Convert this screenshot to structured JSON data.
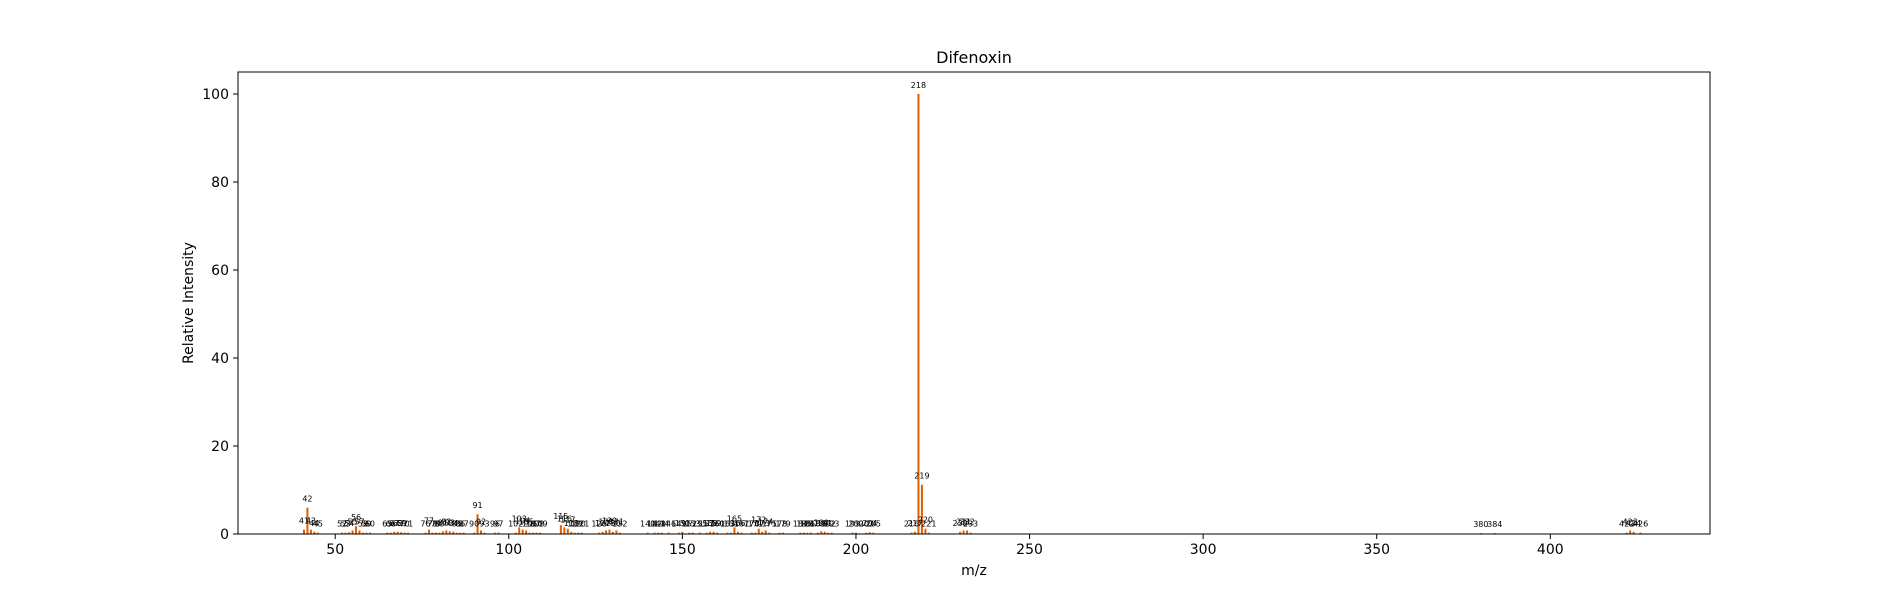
{
  "chart_data": {
    "type": "bar",
    "title": "Difenoxin",
    "xlabel": "m/z",
    "ylabel": "Relative Intensity",
    "xlim": [
      22,
      446
    ],
    "ylim": [
      0,
      105
    ],
    "xticks": [
      50,
      100,
      150,
      200,
      250,
      300,
      350,
      400
    ],
    "yticks": [
      0,
      20,
      40,
      60,
      80,
      100
    ],
    "grid": false,
    "bar_color": "#e06000",
    "peaks": [
      {
        "mz": 41,
        "intensity": 1.0,
        "label": "41"
      },
      {
        "mz": 42,
        "intensity": 6.0,
        "label": "42"
      },
      {
        "mz": 43,
        "intensity": 1.0,
        "label": "43"
      },
      {
        "mz": 44,
        "intensity": 0.5,
        "label": "44"
      },
      {
        "mz": 45,
        "intensity": 0.3,
        "label": "45"
      },
      {
        "mz": 52,
        "intensity": 0.3,
        "label": "52"
      },
      {
        "mz": 53,
        "intensity": 0.3,
        "label": "53"
      },
      {
        "mz": 54,
        "intensity": 0.4,
        "label": "54"
      },
      {
        "mz": 55,
        "intensity": 0.8,
        "label": "55"
      },
      {
        "mz": 56,
        "intensity": 1.8,
        "label": "56"
      },
      {
        "mz": 57,
        "intensity": 0.8,
        "label": "57"
      },
      {
        "mz": 58,
        "intensity": 0.3,
        "label": "58"
      },
      {
        "mz": 59,
        "intensity": 0.3,
        "label": "59"
      },
      {
        "mz": 60,
        "intensity": 0.3,
        "label": "60"
      },
      {
        "mz": 65,
        "intensity": 0.3,
        "label": "65"
      },
      {
        "mz": 66,
        "intensity": 0.3,
        "label": "66"
      },
      {
        "mz": 67,
        "intensity": 0.5,
        "label": "67"
      },
      {
        "mz": 68,
        "intensity": 0.5,
        "label": "68"
      },
      {
        "mz": 69,
        "intensity": 0.4,
        "label": "69"
      },
      {
        "mz": 70,
        "intensity": 0.3,
        "label": "70"
      },
      {
        "mz": 71,
        "intensity": 0.3,
        "label": "71"
      },
      {
        "mz": 76,
        "intensity": 0.3,
        "label": "76"
      },
      {
        "mz": 77,
        "intensity": 1.0,
        "label": "77"
      },
      {
        "mz": 78,
        "intensity": 0.3,
        "label": "78"
      },
      {
        "mz": 79,
        "intensity": 0.3,
        "label": "79"
      },
      {
        "mz": 80,
        "intensity": 0.3,
        "label": "80"
      },
      {
        "mz": 81,
        "intensity": 0.6,
        "label": "81"
      },
      {
        "mz": 82,
        "intensity": 0.8,
        "label": "82"
      },
      {
        "mz": 83,
        "intensity": 0.6,
        "label": "83"
      },
      {
        "mz": 84,
        "intensity": 0.5,
        "label": "84"
      },
      {
        "mz": 85,
        "intensity": 0.3,
        "label": "85"
      },
      {
        "mz": 86,
        "intensity": 0.3,
        "label": "86"
      },
      {
        "mz": 87,
        "intensity": 0.3,
        "label": "87"
      },
      {
        "mz": 90,
        "intensity": 0.3,
        "label": "90"
      },
      {
        "mz": 91,
        "intensity": 4.5,
        "label": "91"
      },
      {
        "mz": 92,
        "intensity": 0.8,
        "label": "92"
      },
      {
        "mz": 93,
        "intensity": 0.3,
        "label": "93"
      },
      {
        "mz": 96,
        "intensity": 0.3,
        "label": "96"
      },
      {
        "mz": 97,
        "intensity": 0.3,
        "label": "97"
      },
      {
        "mz": 102,
        "intensity": 0.3,
        "label": "102"
      },
      {
        "mz": 103,
        "intensity": 1.5,
        "label": "103"
      },
      {
        "mz": 104,
        "intensity": 1.0,
        "label": "104"
      },
      {
        "mz": 105,
        "intensity": 0.8,
        "label": "105"
      },
      {
        "mz": 106,
        "intensity": 0.3,
        "label": "106"
      },
      {
        "mz": 107,
        "intensity": 0.3,
        "label": "107"
      },
      {
        "mz": 108,
        "intensity": 0.3,
        "label": "108"
      },
      {
        "mz": 109,
        "intensity": 0.3,
        "label": "109"
      },
      {
        "mz": 115,
        "intensity": 2.0,
        "label": "115"
      },
      {
        "mz": 116,
        "intensity": 1.5,
        "label": "116"
      },
      {
        "mz": 117,
        "intensity": 1.2,
        "label": "117"
      },
      {
        "mz": 118,
        "intensity": 0.5,
        "label": "118"
      },
      {
        "mz": 119,
        "intensity": 0.3,
        "label": "119"
      },
      {
        "mz": 120,
        "intensity": 0.3,
        "label": "120"
      },
      {
        "mz": 121,
        "intensity": 0.3,
        "label": "121"
      },
      {
        "mz": 126,
        "intensity": 0.3,
        "label": "126"
      },
      {
        "mz": 127,
        "intensity": 0.5,
        "label": "127"
      },
      {
        "mz": 128,
        "intensity": 0.8,
        "label": "128"
      },
      {
        "mz": 129,
        "intensity": 1.0,
        "label": "129"
      },
      {
        "mz": 130,
        "intensity": 0.5,
        "label": "130"
      },
      {
        "mz": 131,
        "intensity": 0.8,
        "label": "131"
      },
      {
        "mz": 132,
        "intensity": 0.3,
        "label": "132"
      },
      {
        "mz": 140,
        "intensity": 0.3,
        "label": "140"
      },
      {
        "mz": 142,
        "intensity": 0.3,
        "label": "142"
      },
      {
        "mz": 143,
        "intensity": 0.3,
        "label": "143"
      },
      {
        "mz": 144,
        "intensity": 0.3,
        "label": "144"
      },
      {
        "mz": 146,
        "intensity": 0.3,
        "label": "146"
      },
      {
        "mz": 149,
        "intensity": 0.3,
        "label": "149"
      },
      {
        "mz": 150,
        "intensity": 0.5,
        "label": "150"
      },
      {
        "mz": 152,
        "intensity": 0.3,
        "label": "152"
      },
      {
        "mz": 153,
        "intensity": 0.3,
        "label": "153"
      },
      {
        "mz": 155,
        "intensity": 0.3,
        "label": "155"
      },
      {
        "mz": 157,
        "intensity": 0.3,
        "label": "157"
      },
      {
        "mz": 158,
        "intensity": 0.5,
        "label": "158"
      },
      {
        "mz": 159,
        "intensity": 0.5,
        "label": "159"
      },
      {
        "mz": 160,
        "intensity": 0.3,
        "label": "160"
      },
      {
        "mz": 163,
        "intensity": 0.3,
        "label": "163"
      },
      {
        "mz": 164,
        "intensity": 0.3,
        "label": "164"
      },
      {
        "mz": 165,
        "intensity": 1.5,
        "label": "165"
      },
      {
        "mz": 166,
        "intensity": 0.5,
        "label": "166"
      },
      {
        "mz": 167,
        "intensity": 0.3,
        "label": "167"
      },
      {
        "mz": 170,
        "intensity": 0.3,
        "label": "170"
      },
      {
        "mz": 171,
        "intensity": 0.3,
        "label": "171"
      },
      {
        "mz": 172,
        "intensity": 1.2,
        "label": "172"
      },
      {
        "mz": 173,
        "intensity": 0.5,
        "label": "173"
      },
      {
        "mz": 174,
        "intensity": 0.8,
        "label": "174"
      },
      {
        "mz": 175,
        "intensity": 0.3,
        "label": "175"
      },
      {
        "mz": 178,
        "intensity": 0.3,
        "label": "178"
      },
      {
        "mz": 179,
        "intensity": 0.3,
        "label": "179"
      },
      {
        "mz": 184,
        "intensity": 0.3,
        "label": "184"
      },
      {
        "mz": 185,
        "intensity": 0.3,
        "label": "185"
      },
      {
        "mz": 186,
        "intensity": 0.3,
        "label": "186"
      },
      {
        "mz": 187,
        "intensity": 0.3,
        "label": "187"
      },
      {
        "mz": 189,
        "intensity": 0.3,
        "label": "189"
      },
      {
        "mz": 190,
        "intensity": 0.6,
        "label": "190"
      },
      {
        "mz": 191,
        "intensity": 0.5,
        "label": "191"
      },
      {
        "mz": 192,
        "intensity": 0.3,
        "label": "192"
      },
      {
        "mz": 193,
        "intensity": 0.3,
        "label": "193"
      },
      {
        "mz": 199,
        "intensity": 0.3,
        "label": "199"
      },
      {
        "mz": 200,
        "intensity": 0.3,
        "label": "200"
      },
      {
        "mz": 203,
        "intensity": 0.3,
        "label": "203"
      },
      {
        "mz": 204,
        "intensity": 0.4,
        "label": "204"
      },
      {
        "mz": 205,
        "intensity": 0.3,
        "label": "205"
      },
      {
        "mz": 216,
        "intensity": 0.3,
        "label": "216"
      },
      {
        "mz": 217,
        "intensity": 0.5,
        "label": "217"
      },
      {
        "mz": 218,
        "intensity": 100.0,
        "label": "218"
      },
      {
        "mz": 219,
        "intensity": 11.2,
        "label": "219"
      },
      {
        "mz": 220,
        "intensity": 1.2,
        "label": "220"
      },
      {
        "mz": 221,
        "intensity": 0.3,
        "label": "221"
      },
      {
        "mz": 230,
        "intensity": 0.5,
        "label": "230"
      },
      {
        "mz": 231,
        "intensity": 0.8,
        "label": "231"
      },
      {
        "mz": 232,
        "intensity": 0.8,
        "label": "232"
      },
      {
        "mz": 233,
        "intensity": 0.3,
        "label": "233"
      },
      {
        "mz": 380,
        "intensity": 0.2,
        "label": "380"
      },
      {
        "mz": 384,
        "intensity": 0.2,
        "label": "384"
      },
      {
        "mz": 422,
        "intensity": 0.3,
        "label": "422"
      },
      {
        "mz": 423,
        "intensity": 0.8,
        "label": "423"
      },
      {
        "mz": 424,
        "intensity": 0.5,
        "label": "424"
      },
      {
        "mz": 426,
        "intensity": 0.3,
        "label": "426"
      }
    ]
  }
}
